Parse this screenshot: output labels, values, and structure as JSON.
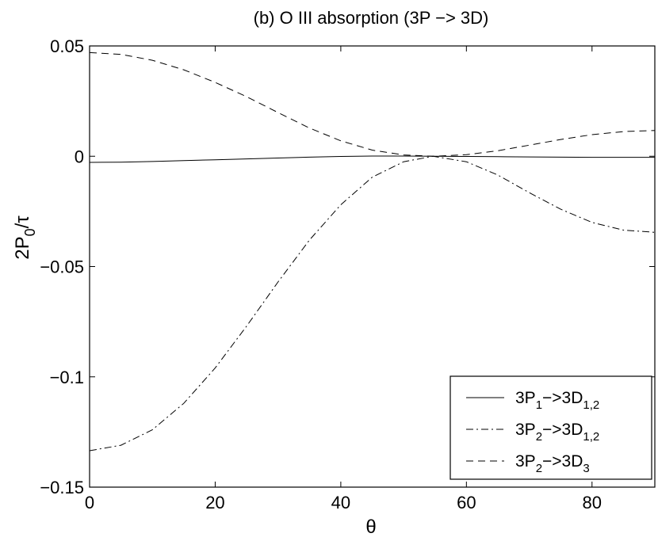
{
  "chart_data": {
    "type": "line",
    "title": "(b) O III absorption (3P −> 3D)",
    "xlabel": "θ",
    "ylabel": {
      "main": "2P",
      "sub": "0",
      "tail": "/τ"
    },
    "xlim": [
      0,
      90
    ],
    "ylim": [
      -0.15,
      0.05
    ],
    "xticks": [
      0,
      20,
      40,
      60,
      80
    ],
    "xtick_labels": [
      "0",
      "20",
      "40",
      "60",
      "80"
    ],
    "yticks": [
      0.05,
      0,
      -0.05,
      -0.1,
      -0.15
    ],
    "ytick_labels": [
      "0.05",
      "0",
      "−0.05",
      "−0.1",
      "−0.15"
    ],
    "grid": false,
    "legend_position": "bottom-right",
    "x": [
      0,
      5,
      10,
      15,
      20,
      25,
      30,
      35,
      40,
      45,
      50,
      54.7,
      60,
      65,
      70,
      75,
      80,
      85,
      90
    ],
    "series": [
      {
        "legend": [
          {
            "t": "3P"
          },
          {
            "t": "1",
            "s": true
          },
          {
            "t": "−>3D"
          },
          {
            "t": "1,2",
            "s": true
          }
        ],
        "dash": "solid",
        "values": [
          -0.0028,
          -0.0027,
          -0.0024,
          -0.002,
          -0.0016,
          -0.0012,
          -0.0008,
          -0.0004,
          -0.0001,
          0.0001,
          0.0001,
          0.0,
          -0.0001,
          -0.0002,
          -0.0003,
          -0.0004,
          -0.0005,
          -0.0005,
          -0.0005
        ]
      },
      {
        "legend": [
          {
            "t": "3P"
          },
          {
            "t": "2",
            "s": true
          },
          {
            "t": "−>3D"
          },
          {
            "t": "1,2",
            "s": true
          }
        ],
        "dash": "dashdot",
        "values": [
          -0.1335,
          -0.131,
          -0.124,
          -0.112,
          -0.096,
          -0.077,
          -0.057,
          -0.038,
          -0.022,
          -0.0095,
          -0.0025,
          0.0,
          -0.0025,
          -0.0085,
          -0.0165,
          -0.024,
          -0.03,
          -0.0335,
          -0.0345
        ]
      },
      {
        "legend": [
          {
            "t": "3P"
          },
          {
            "t": "2",
            "s": true
          },
          {
            "t": "−>3D"
          },
          {
            "t": "3",
            "s": true
          }
        ],
        "dash": "dashed",
        "values": [
          0.047,
          0.0462,
          0.0435,
          0.0392,
          0.0335,
          0.027,
          0.0198,
          0.0128,
          0.007,
          0.0028,
          0.0006,
          0.0,
          0.0007,
          0.0025,
          0.005,
          0.0076,
          0.0098,
          0.0112,
          0.0117
        ]
      }
    ]
  }
}
